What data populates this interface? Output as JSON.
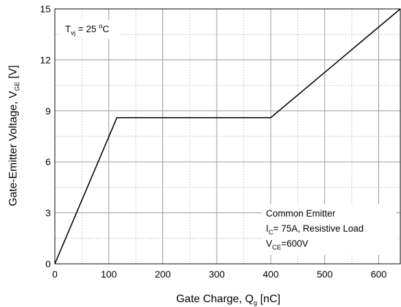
{
  "chart_data": {
    "type": "line",
    "xlabel": {
      "main": "Gate Charge, Q",
      "sub": "g",
      "unit": " [nC]"
    },
    "ylabel": {
      "main": "Gate-Emitter Voltage, V",
      "sub": "GE",
      "unit": " [V]"
    },
    "xlim": [
      0,
      640
    ],
    "ylim": [
      0,
      15
    ],
    "xticks": [
      0,
      100,
      200,
      300,
      400,
      500,
      600
    ],
    "yticks": [
      0,
      3,
      6,
      9,
      12,
      15
    ],
    "grid": true,
    "series": [
      {
        "x": [
          0,
          115,
          400,
          640
        ],
        "y": [
          0,
          8.6,
          8.6,
          15
        ]
      }
    ],
    "annotations": {
      "temperature": {
        "prefix": "T",
        "sub": "vj",
        "value": " = 25 ",
        "degree": "o",
        "unit": "C"
      },
      "conditions": [
        {
          "text": "Common Emitter"
        },
        {
          "prefix": "I",
          "sub": "C",
          "value": "= 75A, Resistive Load"
        },
        {
          "prefix": "V",
          "sub": "CE",
          "value": "=600V"
        }
      ]
    }
  }
}
